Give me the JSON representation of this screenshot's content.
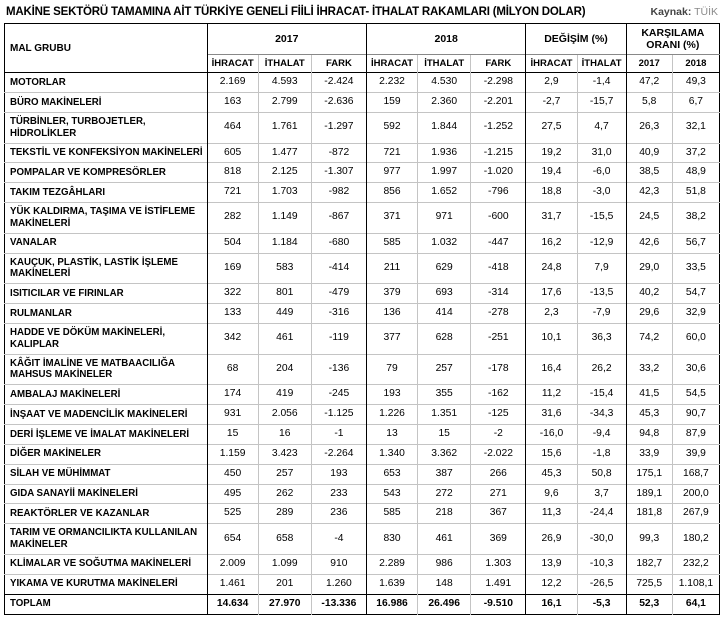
{
  "header": {
    "title": "MAKİNE SEKTÖRÜ TAMAMINA AİT TÜRKİYE GENELİ FİİLİ İHRACAT- İTHALAT RAKAMLARI (MİLYON DOLAR)",
    "source_label": "Kaynak:",
    "source_value": "TÜİK"
  },
  "chart_data": {
    "type": "table",
    "title": "MAKİNE SEKTÖRÜ TAMAMINA AİT TÜRKİYE GENELİ FİİLİ İHRACAT- İTHALAT RAKAMLARI (MİLYON DOLAR)",
    "source": "Kaynak: TÜİK",
    "unit": "MİLYON DOLAR",
    "column_groups": [
      {
        "label": "MAL GRUBU",
        "span": 1
      },
      {
        "label": "2017",
        "span": 3
      },
      {
        "label": "2018",
        "span": 3
      },
      {
        "label": "DEĞİŞİM (%)",
        "span": 2
      },
      {
        "label": "KARŞILAMA ORANI (%)",
        "span": 2
      }
    ],
    "sub_headers": [
      "İHRACAT",
      "İTHALAT",
      "FARK",
      "İHRACAT",
      "İTHALAT",
      "FARK",
      "İHRACAT",
      "İTHALAT",
      "2017",
      "2018"
    ],
    "rows": [
      {
        "label": "MOTORLAR",
        "values": [
          "2.169",
          "4.593",
          "-2.424",
          "2.232",
          "4.530",
          "-2.298",
          "2,9",
          "-1,4",
          "47,2",
          "49,3"
        ]
      },
      {
        "label": "BÜRO MAKİNELERİ",
        "values": [
          "163",
          "2.799",
          "-2.636",
          "159",
          "2.360",
          "-2.201",
          "-2,7",
          "-15,7",
          "5,8",
          "6,7"
        ]
      },
      {
        "label": "TÜRBİNLER, TURBOJETLER,\nHİDROLİKLER",
        "values": [
          "464",
          "1.761",
          "-1.297",
          "592",
          "1.844",
          "-1.252",
          "27,5",
          "4,7",
          "26,3",
          "32,1"
        ]
      },
      {
        "label": "TEKSTİL VE KONFEKSİYON MAKİNELERİ",
        "values": [
          "605",
          "1.477",
          "-872",
          "721",
          "1.936",
          "-1.215",
          "19,2",
          "31,0",
          "40,9",
          "37,2"
        ]
      },
      {
        "label": "POMPALAR VE KOMPRESÖRLER",
        "values": [
          "818",
          "2.125",
          "-1.307",
          "977",
          "1.997",
          "-1.020",
          "19,4",
          "-6,0",
          "38,5",
          "48,9"
        ]
      },
      {
        "label": "TAKIM TEZGÂHLARI",
        "values": [
          "721",
          "1.703",
          "-982",
          "856",
          "1.652",
          "-796",
          "18,8",
          "-3,0",
          "42,3",
          "51,8"
        ]
      },
      {
        "label": "YÜK KALDIRMA, TAŞIMA VE İSTİFLEME\nMAKİNELERİ",
        "values": [
          "282",
          "1.149",
          "-867",
          "371",
          "971",
          "-600",
          "31,7",
          "-15,5",
          "24,5",
          "38,2"
        ]
      },
      {
        "label": "VANALAR",
        "values": [
          "504",
          "1.184",
          "-680",
          "585",
          "1.032",
          "-447",
          "16,2",
          "-12,9",
          "42,6",
          "56,7"
        ]
      },
      {
        "label": "KAUÇUK, PLASTİK, LASTİK İŞLEME\nMAKİNELERİ",
        "values": [
          "169",
          "583",
          "-414",
          "211",
          "629",
          "-418",
          "24,8",
          "7,9",
          "29,0",
          "33,5"
        ]
      },
      {
        "label": "ISITICILAR VE FIRINLAR",
        "values": [
          "322",
          "801",
          "-479",
          "379",
          "693",
          "-314",
          "17,6",
          "-13,5",
          "40,2",
          "54,7"
        ]
      },
      {
        "label": "RULMANLAR",
        "values": [
          "133",
          "449",
          "-316",
          "136",
          "414",
          "-278",
          "2,3",
          "-7,9",
          "29,6",
          "32,9"
        ]
      },
      {
        "label": "HADDE VE DÖKÜM MAKİNELERİ,\nKALIPLAR",
        "values": [
          "342",
          "461",
          "-119",
          "377",
          "628",
          "-251",
          "10,1",
          "36,3",
          "74,2",
          "60,0"
        ]
      },
      {
        "label": "KÂĞIT İMALİNE VE MATBAACILIĞA\nMAHSUS MAKİNELER",
        "values": [
          "68",
          "204",
          "-136",
          "79",
          "257",
          "-178",
          "16,4",
          "26,2",
          "33,2",
          "30,6"
        ]
      },
      {
        "label": "AMBALAJ MAKİNELERİ",
        "values": [
          "174",
          "419",
          "-245",
          "193",
          "355",
          "-162",
          "11,2",
          "-15,4",
          "41,5",
          "54,5"
        ]
      },
      {
        "label": "İNŞAAT VE MADENCİLİK MAKİNELERİ",
        "values": [
          "931",
          "2.056",
          "-1.125",
          "1.226",
          "1.351",
          "-125",
          "31,6",
          "-34,3",
          "45,3",
          "90,7"
        ]
      },
      {
        "label": "DERİ İŞLEME VE İMALAT MAKİNELERİ",
        "values": [
          "15",
          "16",
          "-1",
          "13",
          "15",
          "-2",
          "-16,0",
          "-9,4",
          "94,8",
          "87,9"
        ]
      },
      {
        "label": "DİĞER MAKİNELER",
        "values": [
          "1.159",
          "3.423",
          "-2.264",
          "1.340",
          "3.362",
          "-2.022",
          "15,6",
          "-1,8",
          "33,9",
          "39,9"
        ]
      },
      {
        "label": "SİLAH VE MÜHİMMAT",
        "values": [
          "450",
          "257",
          "193",
          "653",
          "387",
          "266",
          "45,3",
          "50,8",
          "175,1",
          "168,7"
        ]
      },
      {
        "label": "GIDA SANAYİİ MAKİNELERİ",
        "values": [
          "495",
          "262",
          "233",
          "543",
          "272",
          "271",
          "9,6",
          "3,7",
          "189,1",
          "200,0"
        ]
      },
      {
        "label": "REAKTÖRLER VE KAZANLAR",
        "values": [
          "525",
          "289",
          "236",
          "585",
          "218",
          "367",
          "11,3",
          "-24,4",
          "181,8",
          "267,9"
        ]
      },
      {
        "label": "TARIM VE ORMANCILIKTA KULLANILAN\nMAKİNELER",
        "values": [
          "654",
          "658",
          "-4",
          "830",
          "461",
          "369",
          "26,9",
          "-30,0",
          "99,3",
          "180,2"
        ]
      },
      {
        "label": "KLİMALAR VE SOĞUTMA MAKİNELERİ",
        "values": [
          "2.009",
          "1.099",
          "910",
          "2.289",
          "986",
          "1.303",
          "13,9",
          "-10,3",
          "182,7",
          "232,2"
        ]
      },
      {
        "label": "YIKAMA VE KURUTMA MAKİNELERİ",
        "values": [
          "1.461",
          "201",
          "1.260",
          "1.639",
          "148",
          "1.491",
          "12,2",
          "-26,5",
          "725,5",
          "1.108,1"
        ]
      }
    ],
    "total_row": {
      "label": "TOPLAM",
      "values": [
        "14.634",
        "27.970",
        "-13.336",
        "16.986",
        "26.496",
        "-9.510",
        "16,1",
        "-5,3",
        "52,3",
        "64,1"
      ]
    }
  }
}
